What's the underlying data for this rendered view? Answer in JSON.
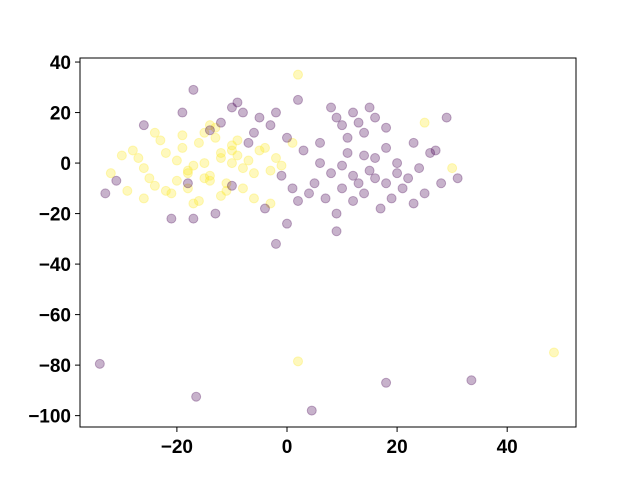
{
  "chart_data": {
    "type": "scatter",
    "xlim": [
      -37.6,
      52.5
    ],
    "ylim": [
      -104.5,
      41.6
    ],
    "xticks": [
      {
        "value": -20,
        "label": "−20"
      },
      0,
      20,
      40
    ],
    "yticks": [
      {
        "value": -100,
        "label": "−100"
      },
      {
        "value": -80,
        "label": "−80"
      },
      {
        "value": -60,
        "label": "−60"
      },
      {
        "value": -40,
        "label": "−40"
      },
      {
        "value": -20,
        "label": "−20"
      },
      0,
      20,
      40
    ],
    "opacity": 0.3,
    "series": [
      {
        "color": "#fde725",
        "x": [
          -15,
          -12,
          -18,
          -10,
          -20,
          -14,
          -16,
          -8,
          -22,
          -25,
          -13,
          -11,
          -17,
          -19,
          -9,
          -6,
          -24,
          -27,
          -21,
          -5,
          -12,
          -15,
          -18,
          -10,
          -14,
          -7,
          -3,
          -2,
          -23,
          -26,
          -28,
          -30,
          -16,
          -13,
          -11,
          -19,
          -20,
          -8,
          -4,
          -1,
          -17,
          -12,
          -15,
          -22,
          -9,
          -14,
          -18,
          -6,
          -10,
          -29,
          -24,
          -32,
          25,
          30,
          2,
          48.5,
          2,
          -3,
          1,
          -26
        ],
        "values": [
          0,
          2,
          -3,
          5,
          1,
          -5,
          8,
          -2,
          4,
          -6,
          10,
          -8,
          -1,
          6,
          3,
          -4,
          -9,
          2,
          -12,
          5,
          -13,
          12,
          -10,
          7,
          -7,
          1,
          -3,
          2,
          9,
          -2,
          5,
          3,
          -15,
          14,
          -11,
          11,
          -7,
          -10,
          6,
          -1,
          -16,
          4,
          -6,
          -11,
          9,
          15,
          -4,
          -14,
          0,
          -11,
          12,
          -4,
          16,
          -2,
          35,
          -75,
          -78.5,
          -16,
          8,
          -14
        ]
      },
      {
        "color": "#440154",
        "x": [
          -34,
          -16.5,
          4.5,
          18,
          33.5,
          -2,
          -17,
          31,
          -8,
          -10,
          -5,
          -12,
          -6,
          -3,
          -9,
          -14,
          -7,
          -2,
          0,
          2,
          10,
          12,
          14,
          16,
          8,
          11,
          18,
          13,
          9,
          15,
          12,
          15,
          18,
          10,
          20,
          14,
          8,
          22,
          16,
          6,
          12,
          19,
          24,
          5,
          9,
          17,
          26,
          25,
          4,
          11,
          13,
          7,
          21,
          3,
          -1,
          2,
          9,
          27,
          23,
          -21,
          -17,
          -10,
          -31,
          -33,
          -18,
          -26,
          -4,
          29,
          0,
          16,
          14,
          20,
          10,
          18,
          6,
          -13,
          -19,
          1,
          23,
          28
        ],
        "values": [
          -79.5,
          -92.5,
          -98,
          -87,
          -86,
          -32,
          29,
          -6,
          20,
          22,
          18,
          16,
          12,
          15,
          24,
          13,
          8,
          20,
          10,
          25,
          15,
          20,
          12,
          18,
          22,
          10,
          14,
          16,
          18,
          22,
          -5,
          -3,
          -8,
          -10,
          0,
          -12,
          -4,
          -6,
          2,
          0,
          -15,
          -14,
          -2,
          -8,
          -20,
          -18,
          4,
          -12,
          -12,
          4,
          -8,
          -14,
          -10,
          5,
          -5,
          -15,
          -27,
          5,
          8,
          -22,
          -22,
          -9,
          -7,
          -12,
          -8,
          15,
          -18,
          18,
          -24,
          -6,
          3,
          -4,
          -1,
          6,
          8,
          -20,
          20,
          -10,
          -16,
          -8
        ]
      }
    ]
  }
}
